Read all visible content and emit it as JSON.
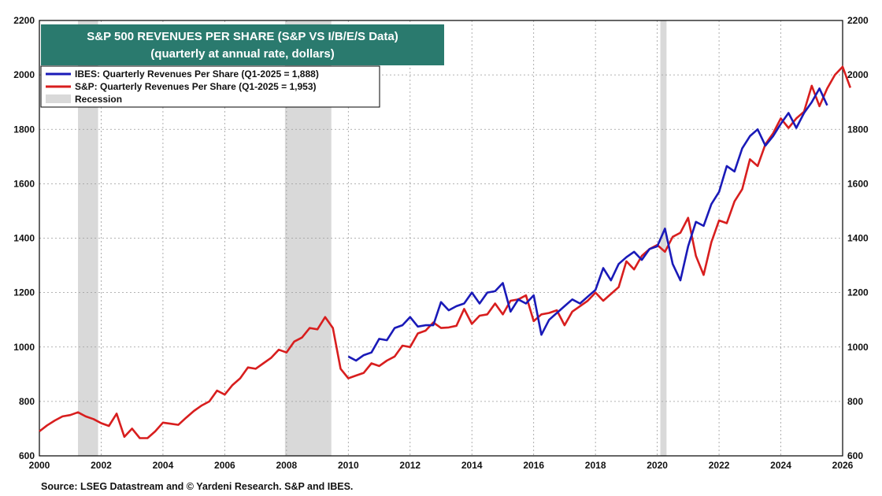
{
  "chart_data": {
    "type": "line",
    "title_line1": "S&P 500 REVENUES PER SHARE (S&P VS I/B/E/S Data)",
    "title_line2": "(quarterly at annual rate, dollars)",
    "xlabel": "",
    "ylabel": "",
    "xlim": [
      2000,
      2026
    ],
    "ylim": [
      600,
      2200
    ],
    "x_ticks": [
      2000,
      2002,
      2004,
      2006,
      2008,
      2010,
      2012,
      2014,
      2016,
      2018,
      2020,
      2022,
      2024,
      2026
    ],
    "y_ticks": [
      600,
      800,
      1000,
      1200,
      1400,
      1600,
      1800,
      2000,
      2200
    ],
    "grid": true,
    "legend_placement": "top-left",
    "source": "Source: LSEG Datastream and © Yardeni Research. S&P and IBES.",
    "recessions": [
      {
        "start": 2001.25,
        "end": 2001.9
      },
      {
        "start": 2007.95,
        "end": 2009.45
      },
      {
        "start": 2020.1,
        "end": 2020.3
      }
    ],
    "legend": {
      "ibes": "IBES: Quarterly Revenues Per Share (Q1-2025 = 1,888)",
      "sp": "S&P: Quarterly Revenues Per Share (Q1-2025 = 1,953)",
      "recession": "Recession"
    },
    "colors": {
      "ibes": "#1a1ab8",
      "sp": "#d81e1e",
      "recession": "#d9d9d9",
      "title_bg": "#2a7a6e"
    },
    "series": [
      {
        "name": "S&P: Quarterly Revenues Per Share (Q1-2025 = 1,953)",
        "key": "sp",
        "points": [
          [
            2000.0,
            690
          ],
          [
            2000.25,
            712
          ],
          [
            2000.5,
            730
          ],
          [
            2000.75,
            745
          ],
          [
            2001.0,
            750
          ],
          [
            2001.25,
            760
          ],
          [
            2001.5,
            745
          ],
          [
            2001.75,
            735
          ],
          [
            2002.0,
            720
          ],
          [
            2002.25,
            710
          ],
          [
            2002.5,
            755
          ],
          [
            2002.75,
            670
          ],
          [
            2003.0,
            700
          ],
          [
            2003.25,
            665
          ],
          [
            2003.5,
            665
          ],
          [
            2003.75,
            690
          ],
          [
            2004.0,
            722
          ],
          [
            2004.25,
            718
          ],
          [
            2004.5,
            714
          ],
          [
            2004.75,
            740
          ],
          [
            2005.0,
            765
          ],
          [
            2005.25,
            785
          ],
          [
            2005.5,
            800
          ],
          [
            2005.75,
            840
          ],
          [
            2006.0,
            825
          ],
          [
            2006.25,
            860
          ],
          [
            2006.5,
            885
          ],
          [
            2006.75,
            925
          ],
          [
            2007.0,
            920
          ],
          [
            2007.25,
            940
          ],
          [
            2007.5,
            960
          ],
          [
            2007.75,
            990
          ],
          [
            2008.0,
            980
          ],
          [
            2008.25,
            1020
          ],
          [
            2008.5,
            1035
          ],
          [
            2008.75,
            1070
          ],
          [
            2009.0,
            1065
          ],
          [
            2009.25,
            1110
          ],
          [
            2009.5,
            1070
          ],
          [
            2009.75,
            920
          ],
          [
            2010.0,
            885
          ],
          [
            2010.25,
            895
          ],
          [
            2010.5,
            905
          ],
          [
            2010.75,
            940
          ],
          [
            2011.0,
            930
          ],
          [
            2011.25,
            950
          ],
          [
            2011.5,
            965
          ],
          [
            2011.75,
            1005
          ],
          [
            2012.0,
            1000
          ],
          [
            2012.25,
            1050
          ],
          [
            2012.5,
            1060
          ],
          [
            2012.75,
            1090
          ],
          [
            2013.0,
            1070
          ],
          [
            2013.25,
            1072
          ],
          [
            2013.5,
            1078
          ],
          [
            2013.75,
            1140
          ],
          [
            2014.0,
            1085
          ],
          [
            2014.25,
            1115
          ],
          [
            2014.5,
            1120
          ],
          [
            2014.75,
            1160
          ],
          [
            2015.0,
            1120
          ],
          [
            2015.25,
            1170
          ],
          [
            2015.5,
            1175
          ],
          [
            2015.75,
            1190
          ],
          [
            2016.0,
            1095
          ],
          [
            2016.25,
            1120
          ],
          [
            2016.5,
            1125
          ],
          [
            2016.75,
            1135
          ],
          [
            2017.0,
            1080
          ],
          [
            2017.25,
            1130
          ],
          [
            2017.5,
            1150
          ],
          [
            2017.75,
            1170
          ],
          [
            2018.0,
            1200
          ],
          [
            2018.25,
            1170
          ],
          [
            2018.5,
            1195
          ],
          [
            2018.75,
            1220
          ],
          [
            2019.0,
            1315
          ],
          [
            2019.25,
            1285
          ],
          [
            2019.5,
            1335
          ],
          [
            2019.75,
            1360
          ],
          [
            2020.0,
            1375
          ],
          [
            2020.25,
            1350
          ],
          [
            2020.5,
            1405
          ],
          [
            2020.75,
            1420
          ],
          [
            2021.0,
            1475
          ],
          [
            2021.25,
            1335
          ],
          [
            2021.5,
            1265
          ],
          [
            2021.75,
            1385
          ],
          [
            2022.0,
            1465
          ],
          [
            2022.25,
            1455
          ],
          [
            2022.5,
            1535
          ],
          [
            2022.75,
            1580
          ],
          [
            2023.0,
            1690
          ],
          [
            2023.25,
            1665
          ],
          [
            2023.5,
            1745
          ],
          [
            2023.75,
            1785
          ],
          [
            2024.0,
            1840
          ],
          [
            2024.25,
            1805
          ],
          [
            2024.5,
            1840
          ],
          [
            2024.75,
            1865
          ],
          [
            2025.0,
            1960
          ],
          [
            2025.25,
            1885
          ],
          [
            2025.5,
            1950
          ],
          [
            2025.75,
            2000
          ],
          [
            2026.0,
            2030
          ],
          [
            2026.25,
            1953
          ]
        ]
      },
      {
        "name": "IBES: Quarterly Revenues Per Share (Q1-2025 = 1,888)",
        "key": "ibes",
        "points": [
          [
            2010.0,
            965
          ],
          [
            2010.25,
            950
          ],
          [
            2010.5,
            970
          ],
          [
            2010.75,
            980
          ],
          [
            2011.0,
            1030
          ],
          [
            2011.25,
            1025
          ],
          [
            2011.5,
            1070
          ],
          [
            2011.75,
            1080
          ],
          [
            2012.0,
            1110
          ],
          [
            2012.25,
            1075
          ],
          [
            2012.5,
            1080
          ],
          [
            2012.75,
            1080
          ],
          [
            2013.0,
            1165
          ],
          [
            2013.25,
            1135
          ],
          [
            2013.5,
            1150
          ],
          [
            2013.75,
            1160
          ],
          [
            2014.0,
            1200
          ],
          [
            2014.25,
            1160
          ],
          [
            2014.5,
            1200
          ],
          [
            2014.75,
            1205
          ],
          [
            2015.0,
            1235
          ],
          [
            2015.25,
            1130
          ],
          [
            2015.5,
            1175
          ],
          [
            2015.75,
            1160
          ],
          [
            2016.0,
            1190
          ],
          [
            2016.25,
            1045
          ],
          [
            2016.5,
            1100
          ],
          [
            2016.75,
            1125
          ],
          [
            2017.0,
            1150
          ],
          [
            2017.25,
            1175
          ],
          [
            2017.5,
            1160
          ],
          [
            2017.75,
            1185
          ],
          [
            2018.0,
            1210
          ],
          [
            2018.25,
            1290
          ],
          [
            2018.5,
            1245
          ],
          [
            2018.75,
            1305
          ],
          [
            2019.0,
            1330
          ],
          [
            2019.25,
            1350
          ],
          [
            2019.5,
            1320
          ],
          [
            2019.75,
            1360
          ],
          [
            2020.0,
            1370
          ],
          [
            2020.25,
            1435
          ],
          [
            2020.5,
            1305
          ],
          [
            2020.75,
            1245
          ],
          [
            2021.0,
            1370
          ],
          [
            2021.25,
            1460
          ],
          [
            2021.5,
            1445
          ],
          [
            2021.75,
            1525
          ],
          [
            2022.0,
            1570
          ],
          [
            2022.25,
            1665
          ],
          [
            2022.5,
            1645
          ],
          [
            2022.75,
            1730
          ],
          [
            2023.0,
            1775
          ],
          [
            2023.25,
            1800
          ],
          [
            2023.5,
            1740
          ],
          [
            2023.75,
            1775
          ],
          [
            2024.0,
            1820
          ],
          [
            2024.25,
            1860
          ],
          [
            2024.5,
            1805
          ],
          [
            2024.75,
            1860
          ],
          [
            2025.0,
            1900
          ],
          [
            2025.25,
            1950
          ],
          [
            2025.5,
            1888
          ]
        ]
      }
    ]
  }
}
